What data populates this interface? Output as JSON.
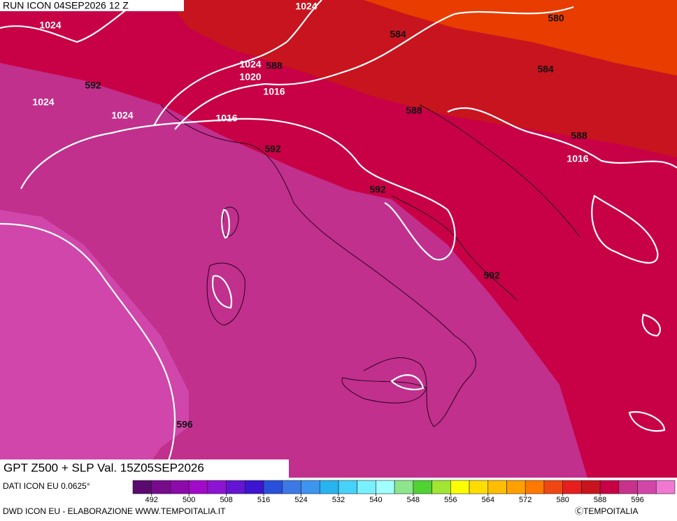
{
  "header": {
    "run": "RUN ICON 04SEP2026 12 Z"
  },
  "map": {
    "title": "GPT Z500 + SLP Val. 15Z05SEP2026",
    "isobar_labels": [
      1024,
      1024,
      1024,
      1020,
      1016,
      1024,
      1024,
      1016,
      1016
    ],
    "geopotential_labels": [
      588,
      592,
      584,
      580,
      584,
      588,
      588,
      592,
      592,
      592,
      596
    ]
  },
  "colorbar": {
    "levels": [
      488,
      492,
      496,
      500,
      504,
      508,
      512,
      516,
      520,
      524,
      528,
      532,
      536,
      540,
      544,
      548,
      552,
      556,
      560,
      564,
      568,
      572,
      576,
      580,
      584,
      588,
      592,
      596,
      600,
      604
    ],
    "colors": [
      "#5a0a6e",
      "#780a8c",
      "#8c0aaa",
      "#a00ac8",
      "#8c14d2",
      "#6414d2",
      "#3c14d2",
      "#2850dc",
      "#3c78e6",
      "#3c96f0",
      "#28b4f0",
      "#46d2fa",
      "#78f0ff",
      "#a0ffff",
      "#8ce68c",
      "#50d232",
      "#a0e632",
      "#ffff00",
      "#ffdc00",
      "#ffbe00",
      "#ffa000",
      "#ff7800",
      "#f04614",
      "#e61e1e",
      "#c8141e",
      "#c80046",
      "#c8328c",
      "#d246aa",
      "#f078d2"
    ],
    "ticks": [
      492,
      500,
      508,
      516,
      524,
      532,
      540,
      548,
      556,
      564,
      572,
      580,
      588,
      596
    ]
  },
  "footer": {
    "source": "DATI ICON EU 0.0625°",
    "credit": "DWD ICON EU - ELABORAZIONE WWW.TEMPOITALIA.IT",
    "copyright": "ⒸTEMPOITALIA"
  }
}
